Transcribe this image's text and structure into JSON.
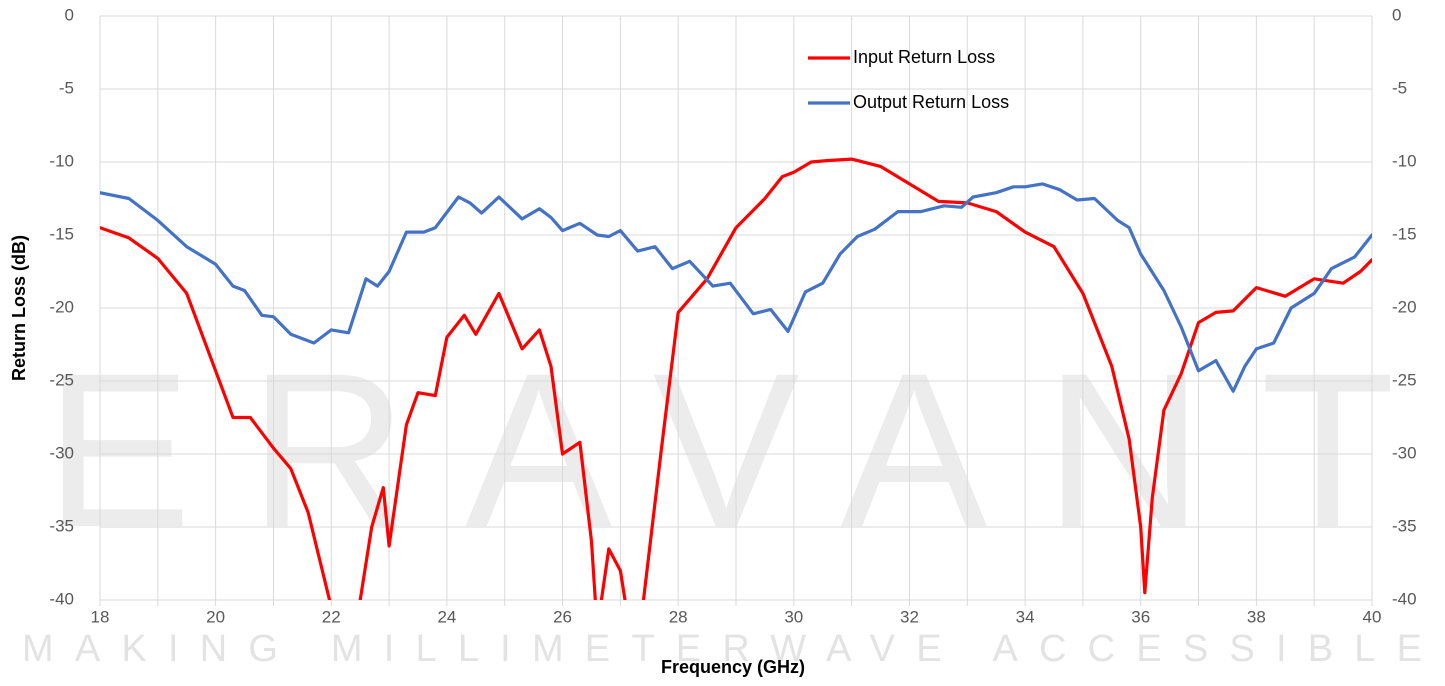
{
  "chart_data": {
    "type": "line",
    "xlabel": "Frequency (GHz)",
    "ylabel": "Return Loss (dB)",
    "watermark": "ERAVANT",
    "watermark_tagline": "MAKING MILLIMETERWAVE ACCESSIBLE",
    "xlim": [
      18,
      40
    ],
    "xticks": [
      18,
      20,
      22,
      24,
      26,
      28,
      30,
      32,
      34,
      36,
      38,
      40
    ],
    "xminor": [
      19,
      21,
      23,
      25,
      27,
      29,
      31,
      33,
      35,
      37,
      39
    ],
    "ylim": [
      -40,
      0
    ],
    "yticks": [
      -40,
      -35,
      -30,
      -25,
      -20,
      -15,
      -10,
      -5,
      0
    ],
    "y2lim": [
      -40,
      0
    ],
    "y2ticks": [
      -40,
      -35,
      -30,
      -25,
      -20,
      -15,
      -10,
      -5,
      0
    ],
    "grid": true,
    "legend": "upper center",
    "series": [
      {
        "name": "Input Return Loss",
        "color": "#ff0000",
        "x": [
          18,
          18.5,
          19,
          19.5,
          20,
          20.3,
          20.6,
          21,
          21.3,
          21.6,
          22,
          22.2,
          22.5,
          22.7,
          22.9,
          23,
          23.3,
          23.5,
          23.8,
          24,
          24.3,
          24.5,
          24.9,
          25.3,
          25.6,
          25.8,
          26,
          26.3,
          26.5,
          26.6,
          26.8,
          27,
          27.2,
          27.4,
          27.7,
          28,
          28.5,
          29,
          29.5,
          29.8,
          30,
          30.3,
          30.6,
          31,
          31.5,
          32,
          32.5,
          33,
          33.5,
          34,
          34.5,
          35,
          35.5,
          35.8,
          36,
          36.07,
          36.2,
          36.4,
          36.7,
          37,
          37.3,
          37.6,
          38,
          38.5,
          39,
          39.5,
          39.8,
          40
        ],
        "values": [
          -14.5,
          -15.2,
          -16.6,
          -19,
          -24.3,
          -27.5,
          -27.5,
          -29.6,
          -31,
          -34,
          -40.5,
          -44,
          -40,
          -35,
          -32.3,
          -36.3,
          -28,
          -25.8,
          -26,
          -22,
          -20.5,
          -21.8,
          -19,
          -22.8,
          -21.5,
          -24,
          -30,
          -29.2,
          -36,
          -42,
          -36.5,
          -38,
          -43,
          -40,
          -30,
          -20.3,
          -18,
          -14.5,
          -12.5,
          -11,
          -10.7,
          -10,
          -9.9,
          -9.8,
          -10.3,
          -11.5,
          -12.7,
          -12.8,
          -13.4,
          -14.8,
          -15.8,
          -19,
          -24,
          -29,
          -35,
          -39.5,
          -33,
          -27,
          -24.5,
          -21,
          -20.3,
          -20.2,
          -18.6,
          -19.2,
          -18,
          -18.3,
          -17.5,
          -16.7
        ]
      },
      {
        "name": "Output Return Loss",
        "color": "#4472c4",
        "x": [
          18,
          18.5,
          19,
          19.5,
          20,
          20.3,
          20.5,
          20.8,
          21,
          21.3,
          21.7,
          22,
          22.3,
          22.6,
          22.8,
          23,
          23.3,
          23.6,
          23.8,
          24.2,
          24.4,
          24.6,
          24.9,
          25.3,
          25.6,
          25.8,
          26,
          26.3,
          26.6,
          26.8,
          27,
          27.3,
          27.6,
          27.9,
          28.2,
          28.6,
          28.9,
          29.3,
          29.6,
          29.9,
          30.2,
          30.5,
          30.8,
          31.1,
          31.4,
          31.8,
          32.2,
          32.6,
          32.9,
          33.1,
          33.5,
          33.8,
          34,
          34.3,
          34.6,
          34.9,
          35.2,
          35.6,
          35.8,
          36,
          36.4,
          36.7,
          37,
          37.3,
          37.6,
          37.8,
          38,
          38.3,
          38.6,
          39,
          39.3,
          39.7,
          40
        ],
        "values": [
          -12.1,
          -12.5,
          -14,
          -15.8,
          -17,
          -18.5,
          -18.8,
          -20.5,
          -20.6,
          -21.8,
          -22.4,
          -21.5,
          -21.7,
          -18,
          -18.5,
          -17.5,
          -14.8,
          -14.8,
          -14.5,
          -12.4,
          -12.8,
          -13.5,
          -12.4,
          -13.9,
          -13.2,
          -13.8,
          -14.7,
          -14.2,
          -15,
          -15.1,
          -14.7,
          -16.1,
          -15.8,
          -17.3,
          -16.8,
          -18.5,
          -18.3,
          -20.4,
          -20.1,
          -21.6,
          -18.9,
          -18.3,
          -16.3,
          -15.1,
          -14.6,
          -13.4,
          -13.4,
          -13,
          -13.1,
          -12.4,
          -12.1,
          -11.7,
          -11.7,
          -11.5,
          -11.9,
          -12.6,
          -12.5,
          -14,
          -14.5,
          -16.3,
          -18.8,
          -21.3,
          -24.3,
          -23.6,
          -25.7,
          -24,
          -22.8,
          -22.4,
          -20,
          -19,
          -17.3,
          -16.5,
          -15
        ]
      }
    ]
  }
}
